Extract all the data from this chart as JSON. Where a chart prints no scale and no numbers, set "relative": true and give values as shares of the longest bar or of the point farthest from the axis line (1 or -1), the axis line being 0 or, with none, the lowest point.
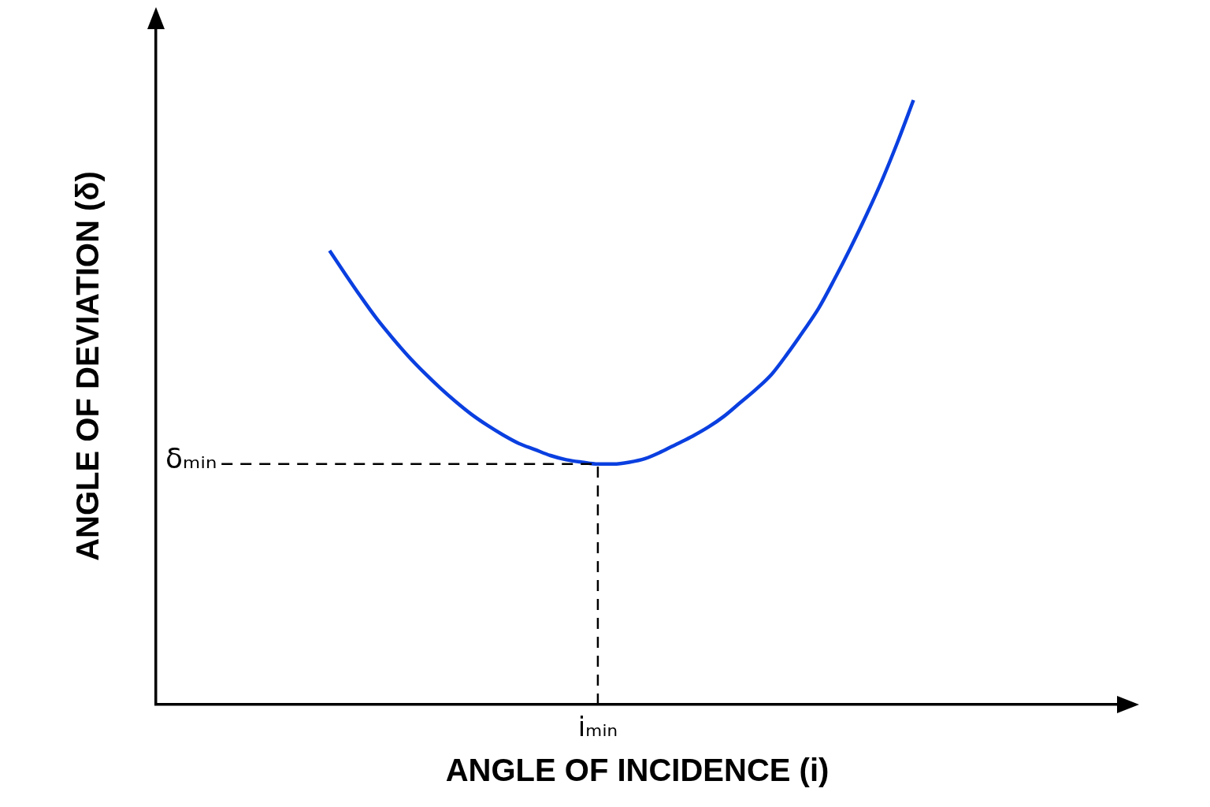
{
  "chart_data": {
    "type": "line",
    "xlabel": "ANGLE OF INCIDENCE (i)",
    "ylabel": "ANGLE OF DEVIATION (δ)",
    "relative": true,
    "color": "#0a3fe0",
    "categories": [
      null,
      null,
      null,
      null,
      null,
      null,
      null,
      null,
      null,
      null,
      null,
      null,
      null,
      null,
      null,
      null,
      null,
      null,
      null,
      null,
      null,
      null,
      null,
      null,
      null,
      null,
      null,
      null,
      null,
      null,
      null,
      null,
      null,
      null,
      null,
      null,
      null,
      null,
      null,
      null,
      null,
      null,
      null,
      null,
      null,
      null,
      null,
      null,
      null,
      null,
      null,
      null,
      null,
      null,
      null,
      null,
      null,
      null,
      null,
      null,
      null,
      null
    ],
    "values": [
      null,
      null,
      null,
      null,
      null,
      null,
      null,
      null,
      null,
      null,
      null,
      0.751,
      0.712,
      0.674,
      0.638,
      0.606,
      0.576,
      0.549,
      0.524,
      0.501,
      0.48,
      0.462,
      0.446,
      0.432,
      0.422,
      0.412,
      0.405,
      0.401,
      0.398,
      0.398,
      0.401,
      0.407,
      0.418,
      0.431,
      0.444,
      0.459,
      0.477,
      0.499,
      0.521,
      0.546,
      0.58,
      0.617,
      0.656,
      0.704,
      0.755,
      0.809,
      0.867,
      0.931,
      1,
      null,
      null,
      null,
      null,
      null,
      null,
      null,
      null,
      null,
      null,
      null,
      null,
      null
    ],
    "ref_lines": [
      {
        "axis": "y",
        "value": 0.398,
        "label": "δₘᵢₙ",
        "line_style": "dashed",
        "color": "#000000"
      },
      {
        "axis": "x",
        "label": "iₘᵢₙ",
        "line_style": "dashed",
        "color": "#000000"
      }
    ]
  }
}
